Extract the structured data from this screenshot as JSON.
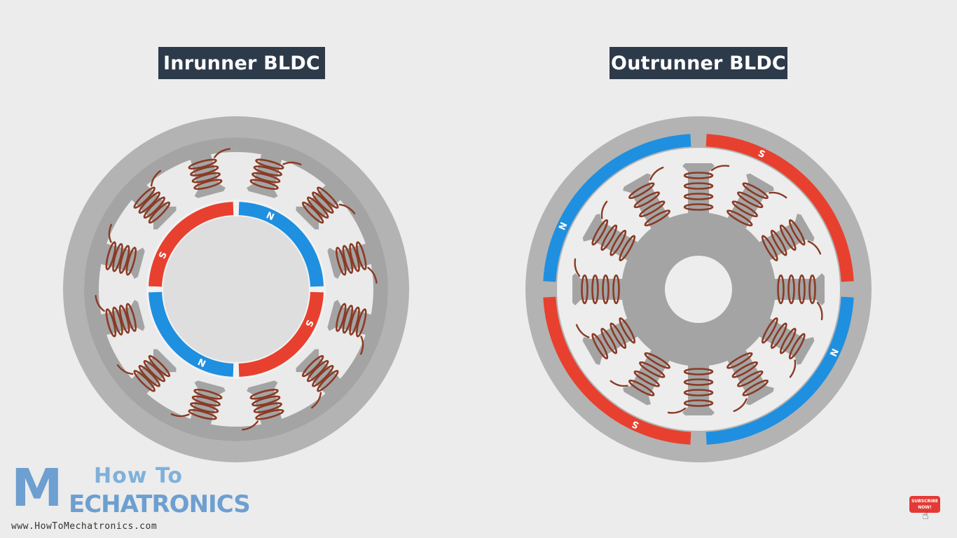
{
  "diagrams": {
    "inrunner": {
      "title": "Inrunner BLDC",
      "magnets": [
        "S",
        "N",
        "S",
        "N"
      ]
    },
    "outrunner": {
      "title": "Outrunner BLDC",
      "magnets": [
        "S",
        "N",
        "S",
        "N"
      ]
    }
  },
  "logo": {
    "mark": "M",
    "line1": "How To",
    "line2": "ECHATRONICS",
    "url": "www.HowToMechatronics.com"
  },
  "subscribe": {
    "line1": "SUBSCRIBE",
    "line2": "NOW!"
  },
  "colors": {
    "background": "#ececec",
    "housing": "#b3b3b3",
    "stator": "#a4a4a4",
    "coil": "#8a3b25",
    "magnet_n": "#1f8fe0",
    "magnet_s": "#e8402f",
    "title_bg": "#2d3a4a"
  }
}
